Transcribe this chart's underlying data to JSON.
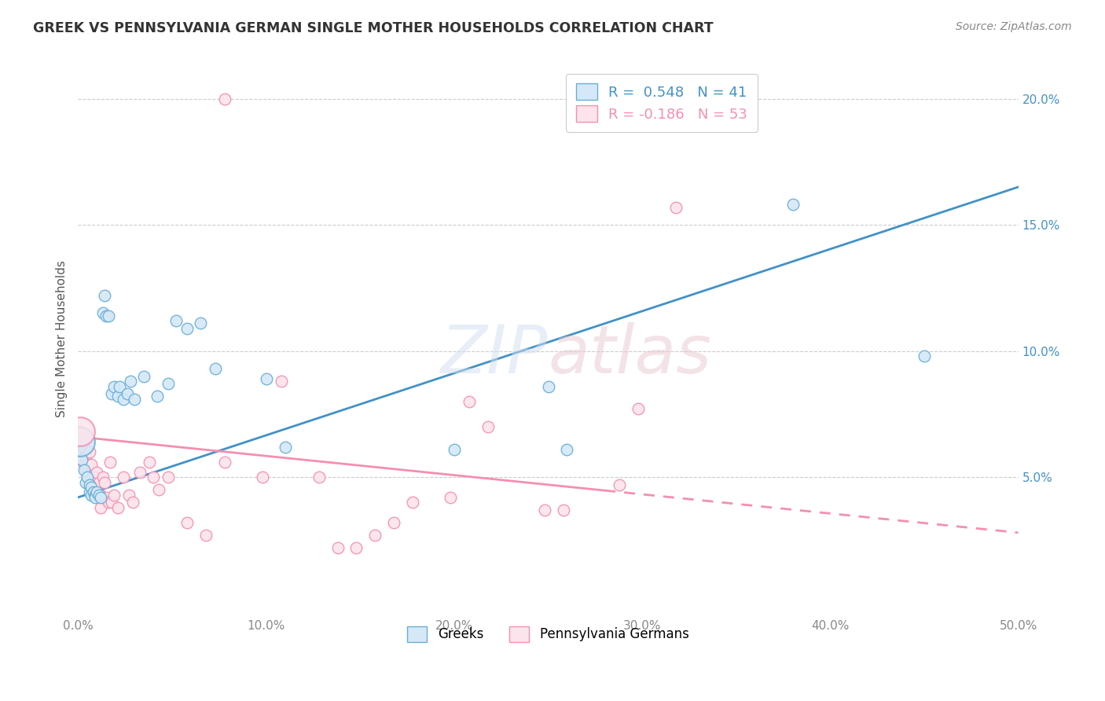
{
  "title": "GREEK VS PENNSYLVANIA GERMAN SINGLE MOTHER HOUSEHOLDS CORRELATION CHART",
  "source": "Source: ZipAtlas.com",
  "ylabel": "Single Mother Households",
  "xlim": [
    0,
    0.5
  ],
  "ylim": [
    -0.005,
    0.215
  ],
  "watermark": "ZIPatlas",
  "greek_color_fill": "#d4e8f7",
  "greek_color_edge": "#6baed6",
  "penn_color_fill": "#fce4ec",
  "penn_color_edge": "#f48fb1",
  "greek_line_color": "#4292c6",
  "penn_line_color": "#f48fb1",
  "greek_scatter": [
    [
      0.001,
      0.065
    ],
    [
      0.002,
      0.057
    ],
    [
      0.003,
      0.053
    ],
    [
      0.004,
      0.048
    ],
    [
      0.005,
      0.05
    ],
    [
      0.006,
      0.047
    ],
    [
      0.006,
      0.044
    ],
    [
      0.007,
      0.046
    ],
    [
      0.007,
      0.043
    ],
    [
      0.008,
      0.044
    ],
    [
      0.009,
      0.043
    ],
    [
      0.009,
      0.042
    ],
    [
      0.01,
      0.044
    ],
    [
      0.011,
      0.043
    ],
    [
      0.012,
      0.042
    ],
    [
      0.013,
      0.115
    ],
    [
      0.014,
      0.122
    ],
    [
      0.015,
      0.114
    ],
    [
      0.016,
      0.114
    ],
    [
      0.018,
      0.083
    ],
    [
      0.019,
      0.086
    ],
    [
      0.021,
      0.082
    ],
    [
      0.022,
      0.086
    ],
    [
      0.024,
      0.081
    ],
    [
      0.026,
      0.083
    ],
    [
      0.028,
      0.088
    ],
    [
      0.03,
      0.081
    ],
    [
      0.035,
      0.09
    ],
    [
      0.042,
      0.082
    ],
    [
      0.048,
      0.087
    ],
    [
      0.052,
      0.112
    ],
    [
      0.058,
      0.109
    ],
    [
      0.065,
      0.111
    ],
    [
      0.073,
      0.093
    ],
    [
      0.1,
      0.089
    ],
    [
      0.11,
      0.062
    ],
    [
      0.2,
      0.061
    ],
    [
      0.25,
      0.086
    ],
    [
      0.26,
      0.061
    ],
    [
      0.38,
      0.158
    ],
    [
      0.45,
      0.098
    ]
  ],
  "penn_scatter": [
    [
      0.001,
      0.068
    ],
    [
      0.002,
      0.065
    ],
    [
      0.002,
      0.06
    ],
    [
      0.003,
      0.062
    ],
    [
      0.003,
      0.055
    ],
    [
      0.004,
      0.058
    ],
    [
      0.004,
      0.053
    ],
    [
      0.005,
      0.055
    ],
    [
      0.005,
      0.05
    ],
    [
      0.006,
      0.06
    ],
    [
      0.007,
      0.055
    ],
    [
      0.008,
      0.048
    ],
    [
      0.009,
      0.05
    ],
    [
      0.01,
      0.052
    ],
    [
      0.011,
      0.048
    ],
    [
      0.012,
      0.043
    ],
    [
      0.012,
      0.038
    ],
    [
      0.013,
      0.05
    ],
    [
      0.014,
      0.048
    ],
    [
      0.015,
      0.042
    ],
    [
      0.016,
      0.04
    ],
    [
      0.017,
      0.056
    ],
    [
      0.018,
      0.04
    ],
    [
      0.019,
      0.043
    ],
    [
      0.021,
      0.038
    ],
    [
      0.024,
      0.05
    ],
    [
      0.027,
      0.043
    ],
    [
      0.029,
      0.04
    ],
    [
      0.033,
      0.052
    ],
    [
      0.038,
      0.056
    ],
    [
      0.04,
      0.05
    ],
    [
      0.043,
      0.045
    ],
    [
      0.048,
      0.05
    ],
    [
      0.058,
      0.032
    ],
    [
      0.068,
      0.027
    ],
    [
      0.078,
      0.056
    ],
    [
      0.098,
      0.05
    ],
    [
      0.108,
      0.088
    ],
    [
      0.128,
      0.05
    ],
    [
      0.138,
      0.022
    ],
    [
      0.148,
      0.022
    ],
    [
      0.158,
      0.027
    ],
    [
      0.168,
      0.032
    ],
    [
      0.178,
      0.04
    ],
    [
      0.198,
      0.042
    ],
    [
      0.208,
      0.08
    ],
    [
      0.218,
      0.07
    ],
    [
      0.248,
      0.037
    ],
    [
      0.258,
      0.037
    ],
    [
      0.288,
      0.047
    ],
    [
      0.078,
      0.2
    ],
    [
      0.298,
      0.077
    ],
    [
      0.318,
      0.157
    ]
  ],
  "greek_large_dot": [
    0.001,
    0.064
  ],
  "penn_large_dot": [
    0.001,
    0.068
  ],
  "greek_line": {
    "x0": 0.0,
    "y0": 0.042,
    "x1": 0.5,
    "y1": 0.165
  },
  "penn_line": {
    "x0": 0.0,
    "y0": 0.066,
    "x1": 0.5,
    "y1": 0.028
  },
  "penn_line_dashed_start": 0.28,
  "x_ticks": [
    0.0,
    0.1,
    0.2,
    0.3,
    0.4,
    0.5
  ],
  "y_ticks": [
    0.0,
    0.05,
    0.1,
    0.15,
    0.2
  ],
  "right_y_tick_labels": [
    "",
    "5.0%",
    "10.0%",
    "15.0%",
    "20.0%"
  ],
  "x_tick_labels": [
    "0.0%",
    "10.0%",
    "20.0%",
    "30.0%",
    "40.0%",
    "50.0%"
  ]
}
